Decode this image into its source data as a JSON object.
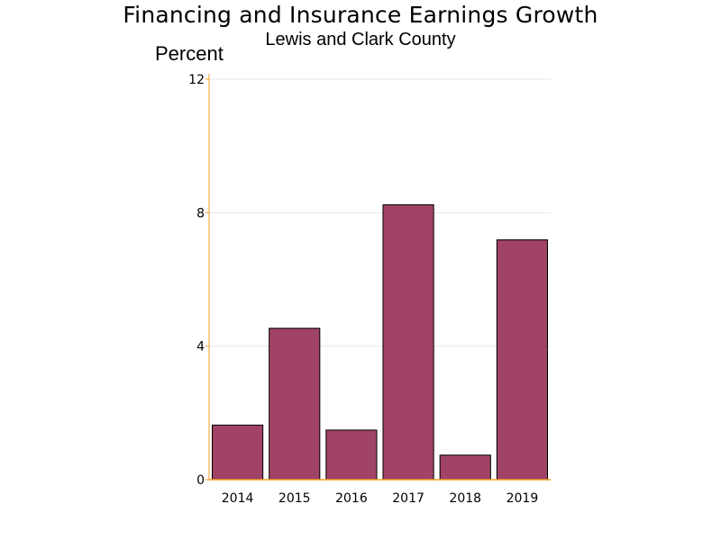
{
  "chart_data": {
    "type": "bar",
    "title": "Financing and Insurance Earnings Growth",
    "subtitle": "Lewis and Clark County",
    "ylabel": "Percent",
    "xlabel": "",
    "categories": [
      "2014",
      "2015",
      "2016",
      "2017",
      "2018",
      "2019"
    ],
    "values": [
      1.65,
      4.55,
      1.5,
      8.25,
      0.75,
      7.2
    ],
    "ylim": [
      0,
      12
    ],
    "yticks": [
      0,
      4,
      8,
      12
    ],
    "grid": true,
    "legend": "none",
    "colors": {
      "bar_fill": "#A04366",
      "bar_stroke": "#000000",
      "axis": "#F0A020",
      "grid": "#E6E6E6"
    }
  }
}
